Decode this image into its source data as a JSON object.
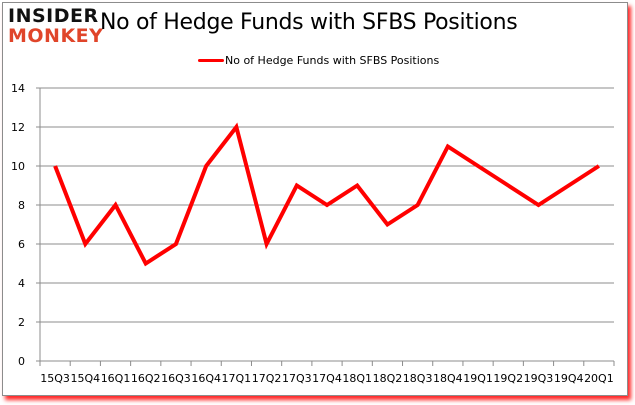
{
  "header": {
    "logo_line1": "INSIDER",
    "logo_line2": "MONKEY",
    "title": "No of Hedge Funds with SFBS Positions"
  },
  "legend": {
    "label": "No of Hedge Funds with SFBS Positions",
    "color": "#ff0000"
  },
  "chart_data": {
    "type": "line",
    "title": "No of Hedge Funds with SFBS Positions",
    "xlabel": "",
    "ylabel": "",
    "ylim": [
      0,
      14
    ],
    "yticks": [
      0,
      2,
      4,
      6,
      8,
      10,
      12,
      14
    ],
    "grid": true,
    "legend_position": "top",
    "categories": [
      "15Q3",
      "15Q4",
      "16Q1",
      "16Q2",
      "16Q3",
      "16Q4",
      "17Q1",
      "17Q2",
      "17Q3",
      "17Q4",
      "18Q1",
      "18Q2",
      "18Q3",
      "18Q4",
      "19Q1",
      "19Q2",
      "19Q3",
      "19Q4",
      "20Q1"
    ],
    "series": [
      {
        "name": "No of Hedge Funds with SFBS Positions",
        "color": "#ff0000",
        "values": [
          10,
          6,
          8,
          5,
          6,
          10,
          12,
          6,
          9,
          8,
          9,
          7,
          8,
          11,
          10,
          9,
          8,
          9,
          10
        ]
      }
    ]
  }
}
